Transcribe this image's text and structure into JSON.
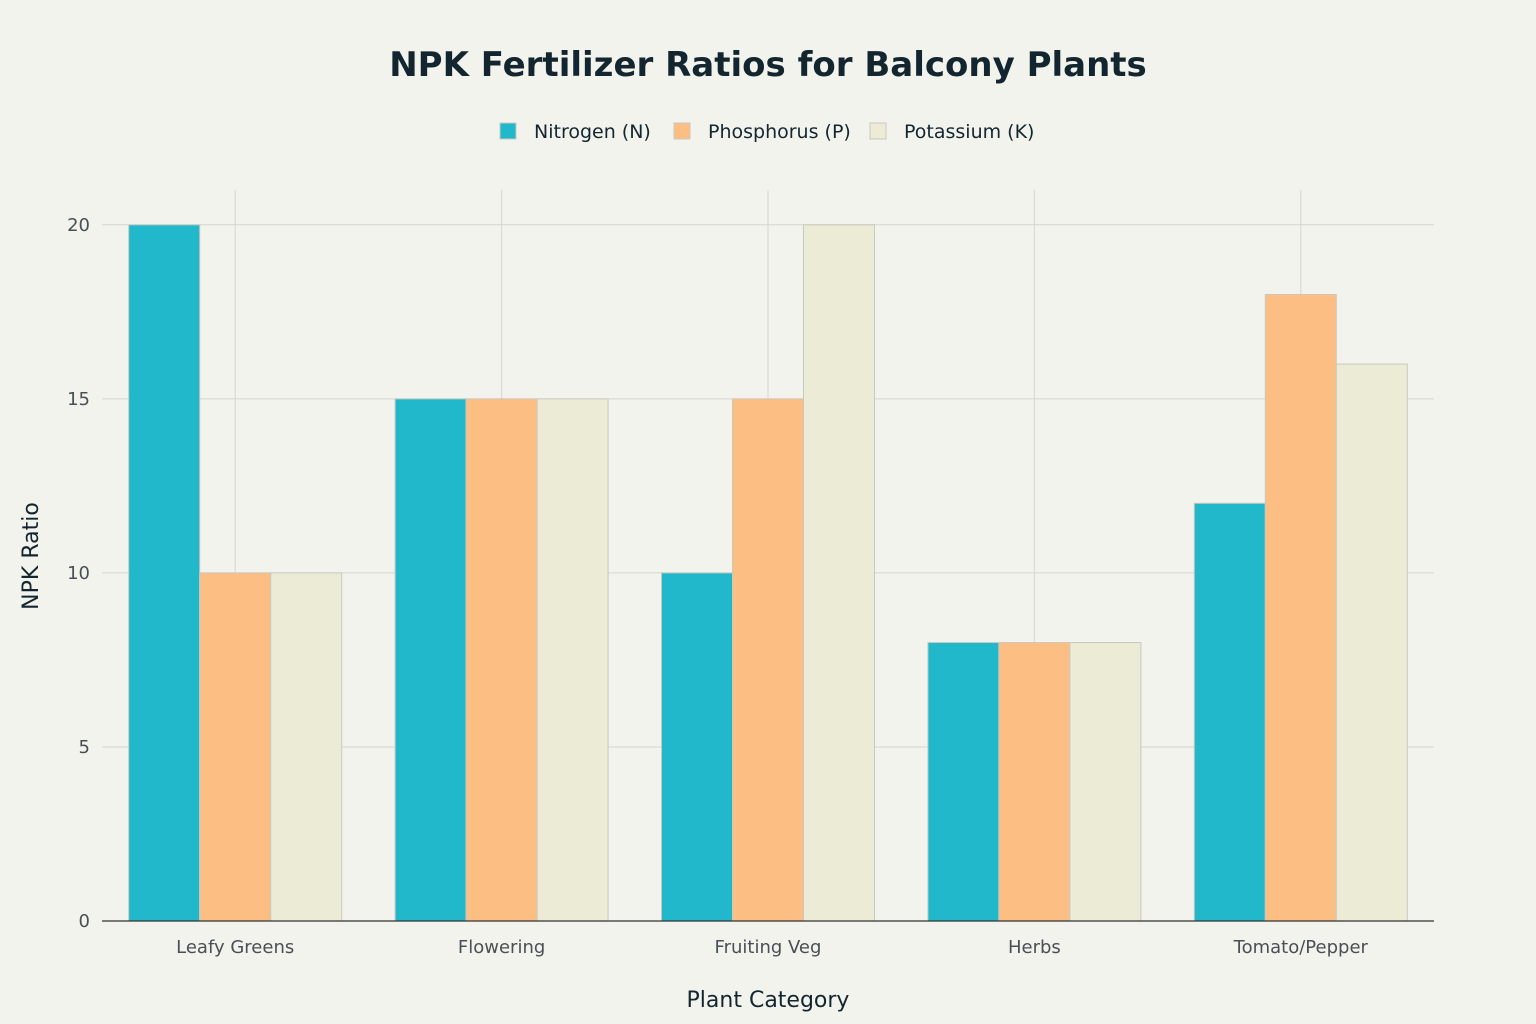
{
  "chart_data": {
    "type": "bar",
    "title": "NPK Fertilizer Ratios for Balcony Plants",
    "xlabel": "Plant Category",
    "ylabel": "NPK Ratio",
    "categories": [
      "Leafy Greens",
      "Flowering",
      "Fruiting Veg",
      "Herbs",
      "Tomato/Pepper"
    ],
    "series": [
      {
        "name": "Nitrogen (N)",
        "color": "#21b8cb",
        "values": [
          20,
          15,
          10,
          8,
          12
        ]
      },
      {
        "name": "Phosphorus (P)",
        "color": "#fdbe84",
        "values": [
          10,
          15,
          15,
          8,
          18
        ]
      },
      {
        "name": "Potassium (K)",
        "color": "#ecebd6",
        "values": [
          10,
          15,
          20,
          8,
          16
        ]
      }
    ],
    "ylim": [
      0,
      21
    ],
    "yticks": [
      0,
      5,
      10,
      15,
      20
    ],
    "grid": true,
    "legend_position": "top-center"
  }
}
